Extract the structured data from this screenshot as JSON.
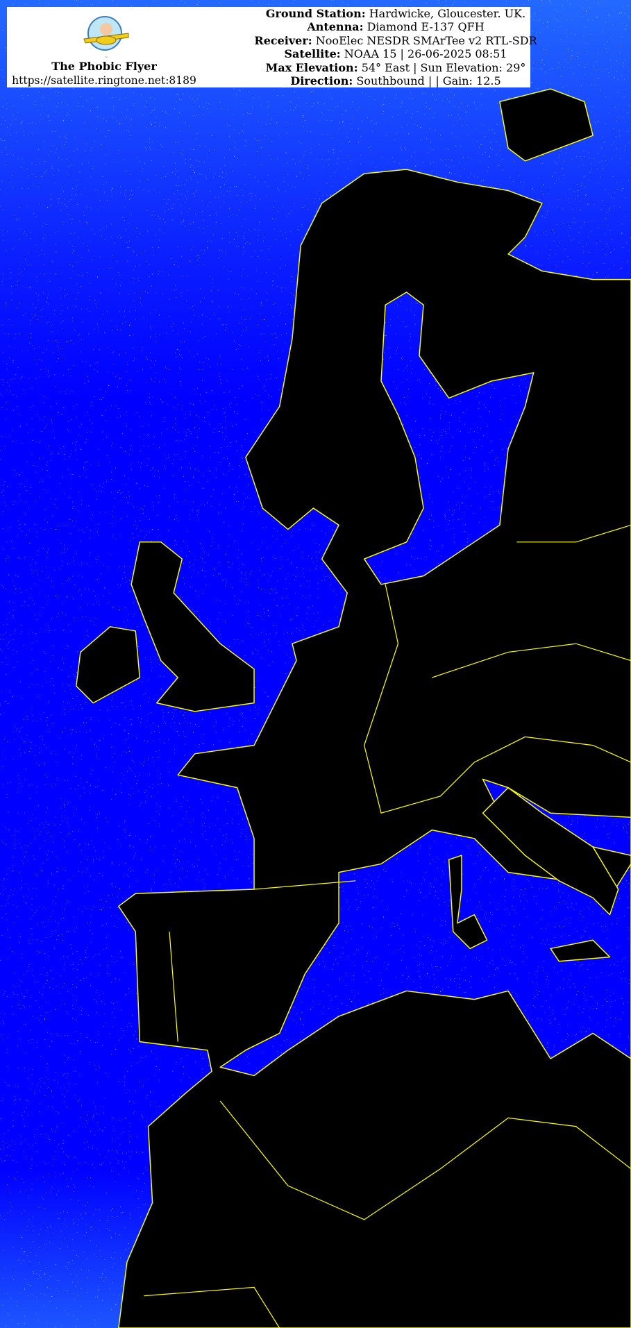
{
  "header": {
    "brand_title": "The Phobic Flyer",
    "brand_url": "https://satellite.ringtone.net:8189",
    "logo_icon": "pilot-plane-logo",
    "lines": [
      {
        "label": "Ground Station:",
        "value": "Hardwicke, Gloucester. UK."
      },
      {
        "label": "Antenna:",
        "value": "Diamond E-137 QFH"
      },
      {
        "label": "Receiver:",
        "value": "NooElec NESDR SMArTee v2 RTL-SDR"
      },
      {
        "label": "Satellite:",
        "value": "NOAA 15 | 26-06-2025 08:51"
      },
      {
        "label": "Max Elevation:",
        "value": "54° East | Sun Elevation: 29°"
      },
      {
        "label": "Direction:",
        "value": "Southbound | | Gain: 12.5"
      }
    ]
  },
  "map": {
    "sea_color": "#0000ff",
    "land_color": "#000000",
    "border_color": "#ffff00",
    "noise_color": "#ffff40"
  }
}
